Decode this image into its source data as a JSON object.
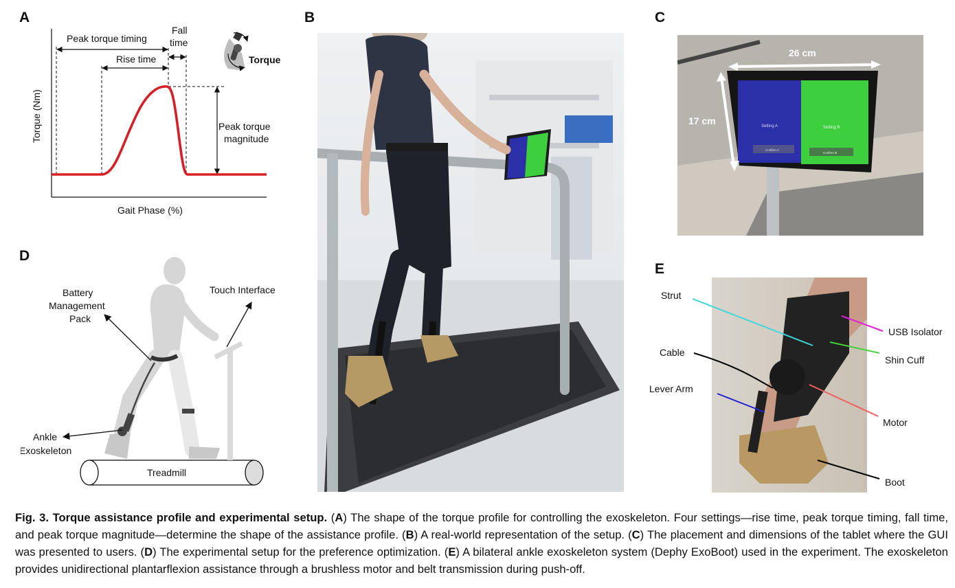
{
  "panels": {
    "a": {
      "letter": "A",
      "ylabel": "Torque (Nm)",
      "xlabel": "Gait Phase (%)",
      "peak_timing": "Peak torque timing",
      "rise_time": "Rise time",
      "fall_line1": "Fall",
      "fall_line2": "time",
      "peak_mag_line1": "Peak torque",
      "peak_mag_line2": "magnitude",
      "torque_label": "Torque",
      "curve_color": "#d42027"
    },
    "b": {
      "letter": "B"
    },
    "c": {
      "letter": "C",
      "width_label": "26 cm",
      "height_label": "17 cm",
      "setting_a": "Setting A",
      "setting_b": "Setting B",
      "confirm_a": "Confirm A",
      "confirm_b": "Confirm B",
      "blue": "#2b2fa8",
      "green": "#3ecf3e"
    },
    "d": {
      "letter": "D",
      "battery_line1": "Battery",
      "battery_line2": "Management",
      "battery_line3": "Pack",
      "touch": "Touch Interface",
      "ankle_line1": "Ankle",
      "ankle_line2": "Exoskeleton",
      "treadmill": "Treadmill"
    },
    "e": {
      "letter": "E",
      "strut": "Strut",
      "cable": "Cable",
      "lever": "Lever Arm",
      "usb": "USB Isolator",
      "shin": "Shin Cuff",
      "motor": "Motor",
      "boot": "Boot",
      "colors": {
        "strut": "#3fd6dc",
        "cable": "#000000",
        "lever": "#1f1fd0",
        "usb": "#e020d8",
        "shin": "#43d13a",
        "motor": "#f06060",
        "boot": "#000000"
      }
    }
  },
  "caption": {
    "fig": "Fig. 3. Torque assistance profile and experimental setup.",
    "p1_open": " (",
    "a": "A",
    "a_text": ") The shape of the torque profile for controlling the exoskeleton. Four settings—rise time, peak torque timing, fall time, and peak torque magnitude—determine the shape of the assistance profile. (",
    "b": "B",
    "b_text": ") A real-world representation of the setup. (",
    "c": "C",
    "c_text": ") The placement and dimensions of the tablet where the GUI was presented to users. (",
    "d": "D",
    "d_text": ") The experimental setup for the preference optimization. (",
    "e": "E",
    "e_text": ") A bilateral ankle exoskeleton system (Dephy ExoBoot) used in the experiment. The exoskeleton provides unidirectional plantarflexion assistance through a brushless motor and belt transmission during push-off."
  }
}
